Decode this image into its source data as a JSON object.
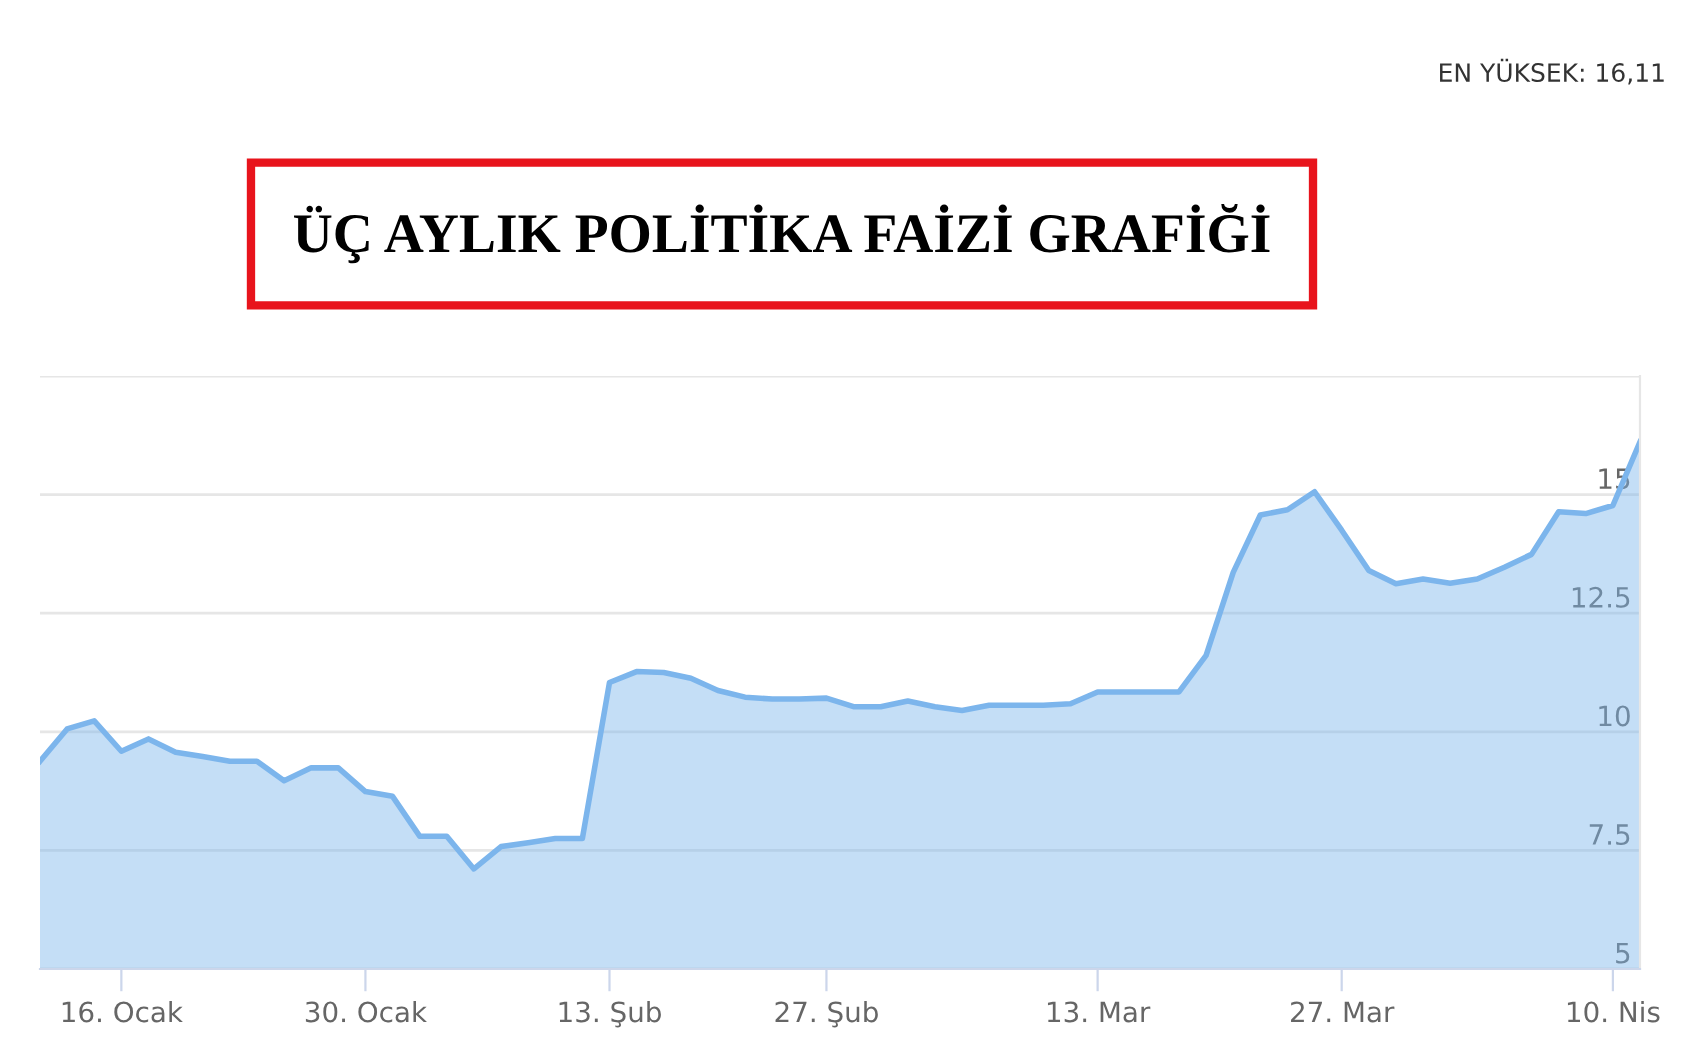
{
  "chart_data": {
    "type": "area",
    "title": "ÜÇ AYLIK POLİTİKA FAİZİ GRAFİĞİ",
    "annotations": [
      "EN YÜKSEK: 16,11"
    ],
    "categories": [
      null,
      null,
      null,
      "16. Ocak",
      null,
      null,
      null,
      null,
      null,
      null,
      null,
      null,
      "30. Ocak",
      null,
      null,
      null,
      null,
      null,
      null,
      null,
      null,
      "13. Şub",
      null,
      null,
      null,
      null,
      null,
      null,
      null,
      "27. Şub",
      null,
      null,
      null,
      null,
      null,
      null,
      null,
      null,
      null,
      "13. Mar",
      null,
      null,
      null,
      null,
      null,
      null,
      null,
      null,
      "27. Mar",
      null,
      null,
      null,
      null,
      null,
      null,
      null,
      null,
      null,
      "10. Nis",
      null
    ],
    "series": [
      {
        "color": "#7cb5ec",
        "values": [
          9.38,
          10.06,
          10.23,
          9.59,
          9.85,
          9.57,
          9.48,
          9.38,
          9.38,
          8.97,
          9.24,
          9.24,
          8.74,
          8.64,
          7.8,
          7.8,
          7.11,
          7.58,
          7.66,
          7.75,
          7.75,
          11.04,
          11.27,
          11.25,
          11.13,
          10.87,
          10.73,
          10.69,
          10.69,
          10.71,
          10.53,
          10.53,
          10.65,
          10.53,
          10.45,
          10.56,
          10.56,
          10.56,
          10.59,
          10.84,
          10.84,
          10.84,
          10.84,
          11.61,
          13.36,
          14.57,
          14.68,
          15.06,
          14.25,
          13.4,
          13.12,
          13.22,
          13.13,
          13.22,
          13.47,
          13.74,
          14.64,
          14.6,
          14.77,
          16.11
        ]
      }
    ],
    "ylim": [
      5,
      17.5
    ],
    "yticks": [
      5,
      7.5,
      10,
      12.5,
      15,
      {
        "value": 17.5,
        "label": null
      }
    ],
    "grid": "y"
  }
}
